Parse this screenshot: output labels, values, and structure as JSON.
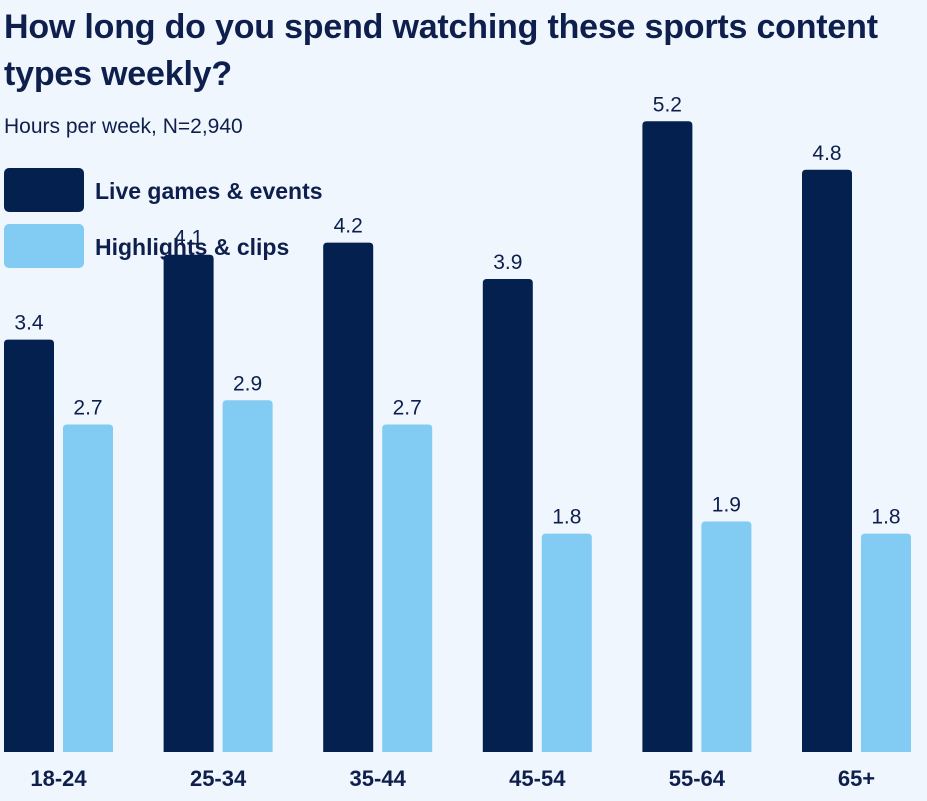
{
  "chart_data": {
    "type": "bar",
    "title": "How long do you spend watching these sports content types weekly?",
    "subtitle": "Hours per week, N=2,940",
    "categories": [
      "18-24",
      "25-34",
      "35-44",
      "45-54",
      "55-64",
      "65+"
    ],
    "series": [
      {
        "name": "Live games & events",
        "color": "#03204f",
        "values": [
          3.4,
          4.1,
          4.2,
          3.9,
          5.2,
          4.8
        ]
      },
      {
        "name": "Highlights & clips",
        "color": "#82cbf3",
        "values": [
          2.7,
          2.9,
          2.7,
          1.8,
          1.9,
          1.8
        ]
      }
    ],
    "ylim": [
      0,
      6.2
    ],
    "grid": false,
    "legend_position": "top-left",
    "data_labels": true
  }
}
